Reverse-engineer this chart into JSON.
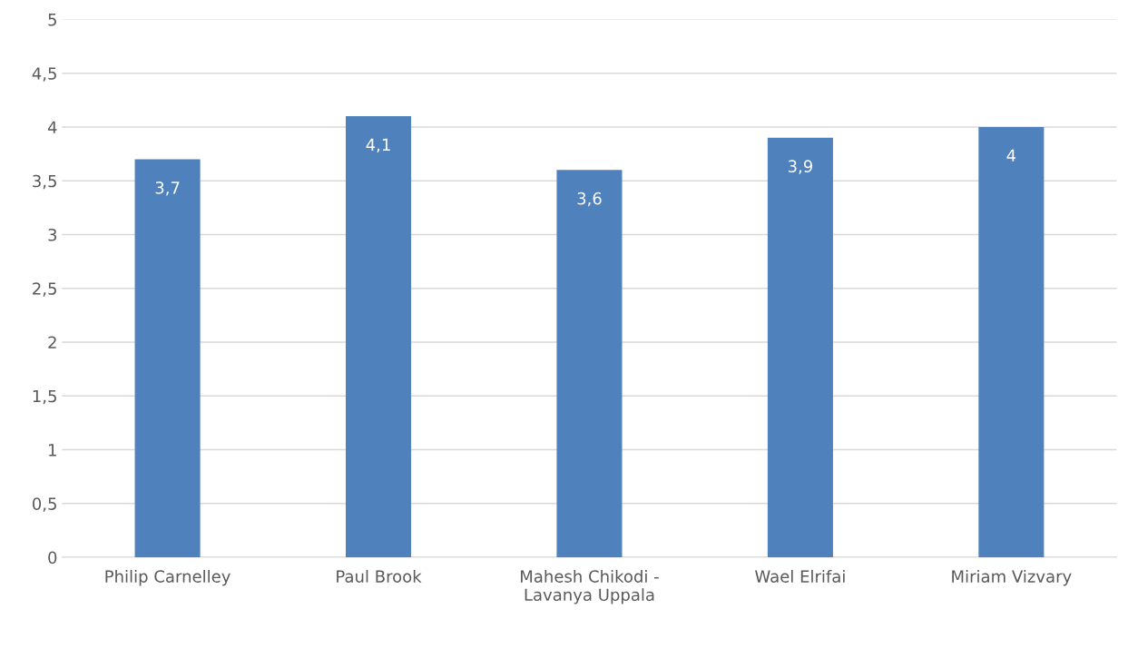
{
  "chart_data": {
    "type": "bar",
    "categories": [
      "Philip Carnelley",
      "Paul Brook",
      "Mahesh Chikodi -\nLavanya Uppala",
      "Wael Elrifai",
      "Miriam Vizvary"
    ],
    "values": [
      3.7,
      4.1,
      3.6,
      3.9,
      4.0
    ],
    "value_labels": [
      "3,7",
      "4,1",
      "3,6",
      "3,9",
      "4"
    ],
    "color": "#4f81bd",
    "ylim": [
      0,
      5
    ],
    "yticks": [
      0,
      {
        "value": 0.5,
        "label": "0,5"
      },
      1,
      {
        "value": 1.5,
        "label": "1,5"
      },
      2,
      {
        "value": 2.5,
        "label": "2,5"
      },
      3,
      {
        "value": 3.5,
        "label": "3,5"
      },
      4,
      {
        "value": 4.5,
        "label": "4,5"
      },
      5
    ],
    "grid": "y"
  }
}
